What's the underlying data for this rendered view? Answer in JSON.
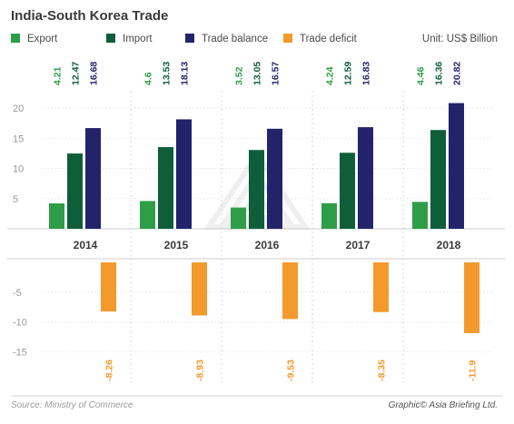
{
  "chart_data": {
    "type": "bar",
    "title": "India-South Korea Trade",
    "unit": "Unit: US$ Billion",
    "categories": [
      "2014",
      "2015",
      "2016",
      "2017",
      "2018"
    ],
    "series": [
      {
        "name": "Export",
        "color": "#2e9d48",
        "values": [
          4.21,
          4.6,
          3.52,
          4.24,
          4.46
        ],
        "labels": [
          "4.21",
          "4.6",
          "3.52",
          "4.24",
          "4.46"
        ]
      },
      {
        "name": "Import",
        "color": "#0f5e3a",
        "values": [
          12.47,
          13.53,
          13.05,
          12.59,
          16.36
        ],
        "labels": [
          "12.47",
          "13.53",
          "13.05",
          "12.59",
          "16.36"
        ]
      },
      {
        "name": "Trade balance",
        "color": "#23236b",
        "values": [
          16.68,
          18.13,
          16.57,
          16.83,
          20.82
        ],
        "labels": [
          "16.68",
          "18.13",
          "16.57",
          "16.83",
          "20.82"
        ]
      },
      {
        "name": "Trade deficit",
        "color": "#f39a2c",
        "values": [
          -8.26,
          -8.93,
          -9.53,
          -8.35,
          -11.9
        ],
        "labels": [
          "-8.26",
          "-8.93",
          "-9.53",
          "-8.35",
          "-11.9"
        ]
      }
    ],
    "upper_axis": {
      "ylim": [
        0,
        22
      ],
      "ticks": [
        "5",
        "10",
        "15",
        "20"
      ]
    },
    "lower_axis": {
      "ylim": [
        -16,
        0
      ],
      "ticks": [
        "-5",
        "-10",
        "-15"
      ]
    },
    "legend_position": "top"
  },
  "footer": {
    "source": "Source: Ministry of Commerce",
    "credit": "Graphic© Asia Briefing Ltd."
  }
}
